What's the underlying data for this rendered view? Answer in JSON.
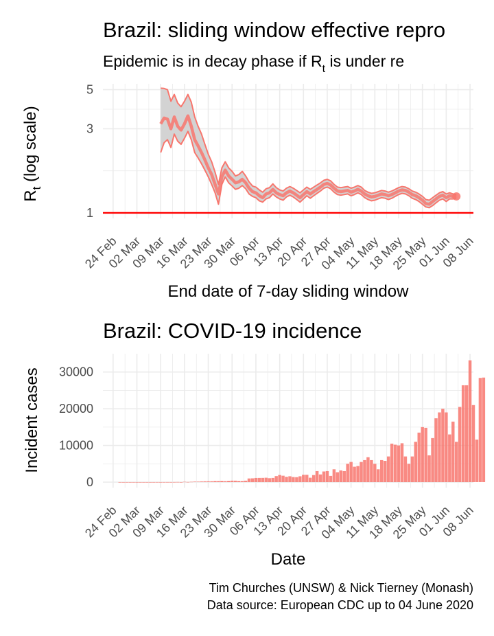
{
  "colors": {
    "series": "#f8766d",
    "threshold": "#ff0000",
    "ribbon": "#d3d3d3",
    "grid": "#ebebeb"
  },
  "chart_data": [
    {
      "type": "line",
      "title": "Brazil: sliding window effective repro",
      "subtitle_prefix": "Epidemic is in decay phase if R",
      "subtitle_sub": "t",
      "subtitle_suffix": "  is under re",
      "xlabel": "End date of 7-day sliding window",
      "ylabel_main": "R",
      "ylabel_sub": "t",
      "ylabel_suffix": " (log scale)",
      "yscale": "log",
      "ylim": [
        0.93,
        5.4
      ],
      "yticks": [
        {
          "value": 1,
          "label": "1"
        },
        {
          "value": 3,
          "label": "3"
        },
        {
          "value": 5,
          "label": "5"
        }
      ],
      "xlim": [
        "2020-02-21",
        "2020-06-09"
      ],
      "xticks": [
        {
          "date": "2020-02-24",
          "label": "24 Feb"
        },
        {
          "date": "2020-03-02",
          "label": "02 Mar"
        },
        {
          "date": "2020-03-09",
          "label": "09 Mar"
        },
        {
          "date": "2020-03-16",
          "label": "16 Mar"
        },
        {
          "date": "2020-03-23",
          "label": "23 Mar"
        },
        {
          "date": "2020-03-30",
          "label": "30 Mar"
        },
        {
          "date": "2020-04-06",
          "label": "06 Apr"
        },
        {
          "date": "2020-04-13",
          "label": "13 Apr"
        },
        {
          "date": "2020-04-20",
          "label": "20 Apr"
        },
        {
          "date": "2020-04-27",
          "label": "27 Apr"
        },
        {
          "date": "2020-05-04",
          "label": "04 May"
        },
        {
          "date": "2020-05-11",
          "label": "11 May"
        },
        {
          "date": "2020-05-18",
          "label": "18 May"
        },
        {
          "date": "2020-05-25",
          "label": "25 May"
        },
        {
          "date": "2020-06-01",
          "label": "01 Jun"
        },
        {
          "date": "2020-06-08",
          "label": "08 Jun"
        }
      ],
      "threshold": 1,
      "grid": true,
      "series": [
        {
          "points": [
            [
              "2020-03-09",
              3.2,
              2.2,
              5.1
            ],
            [
              "2020-03-10",
              3.45,
              2.5,
              5.08
            ],
            [
              "2020-03-11",
              3.4,
              2.6,
              5.0
            ],
            [
              "2020-03-12",
              3.0,
              2.35,
              4.3
            ],
            [
              "2020-03-13",
              3.5,
              2.8,
              4.7
            ],
            [
              "2020-03-14",
              3.1,
              2.55,
              4.2
            ],
            [
              "2020-03-15",
              2.95,
              2.45,
              4.0
            ],
            [
              "2020-03-16",
              3.2,
              2.65,
              4.3
            ],
            [
              "2020-03-17",
              3.55,
              2.9,
              4.7
            ],
            [
              "2020-03-18",
              3.1,
              2.6,
              4.25
            ],
            [
              "2020-03-19",
              2.6,
              2.2,
              3.5
            ],
            [
              "2020-03-20",
              2.4,
              2.05,
              3.1
            ],
            [
              "2020-03-21",
              2.2,
              1.9,
              2.8
            ],
            [
              "2020-03-22",
              2.0,
              1.75,
              2.45
            ],
            [
              "2020-03-23",
              1.8,
              1.6,
              2.15
            ],
            [
              "2020-03-24",
              1.65,
              1.45,
              1.95
            ],
            [
              "2020-03-25",
              1.45,
              1.3,
              1.7
            ],
            [
              "2020-03-26",
              1.28,
              1.12,
              1.45
            ],
            [
              "2020-03-27",
              1.6,
              1.45,
              1.8
            ],
            [
              "2020-03-28",
              1.75,
              1.6,
              1.95
            ],
            [
              "2020-03-29",
              1.62,
              1.48,
              1.8
            ],
            [
              "2020-03-30",
              1.55,
              1.42,
              1.72
            ],
            [
              "2020-03-31",
              1.48,
              1.36,
              1.62
            ],
            [
              "2020-04-01",
              1.5,
              1.38,
              1.65
            ],
            [
              "2020-04-02",
              1.55,
              1.43,
              1.72
            ],
            [
              "2020-04-03",
              1.48,
              1.37,
              1.62
            ],
            [
              "2020-04-04",
              1.38,
              1.28,
              1.5
            ],
            [
              "2020-04-05",
              1.32,
              1.24,
              1.42
            ],
            [
              "2020-04-06",
              1.3,
              1.22,
              1.4
            ],
            [
              "2020-04-07",
              1.25,
              1.17,
              1.35
            ],
            [
              "2020-04-08",
              1.22,
              1.15,
              1.31
            ],
            [
              "2020-04-09",
              1.28,
              1.2,
              1.37
            ],
            [
              "2020-04-10",
              1.3,
              1.22,
              1.39
            ],
            [
              "2020-04-11",
              1.36,
              1.28,
              1.46
            ],
            [
              "2020-04-12",
              1.3,
              1.23,
              1.39
            ],
            [
              "2020-04-13",
              1.27,
              1.2,
              1.35
            ],
            [
              "2020-04-14",
              1.25,
              1.18,
              1.33
            ],
            [
              "2020-04-15",
              1.3,
              1.23,
              1.38
            ],
            [
              "2020-04-16",
              1.33,
              1.26,
              1.41
            ],
            [
              "2020-04-17",
              1.3,
              1.23,
              1.38
            ],
            [
              "2020-04-18",
              1.26,
              1.19,
              1.34
            ],
            [
              "2020-04-19",
              1.22,
              1.15,
              1.3
            ],
            [
              "2020-04-20",
              1.27,
              1.2,
              1.35
            ],
            [
              "2020-04-21",
              1.32,
              1.25,
              1.4
            ],
            [
              "2020-04-22",
              1.28,
              1.21,
              1.36
            ],
            [
              "2020-04-23",
              1.32,
              1.25,
              1.4
            ],
            [
              "2020-04-24",
              1.36,
              1.29,
              1.44
            ],
            [
              "2020-04-25",
              1.4,
              1.33,
              1.48
            ],
            [
              "2020-04-26",
              1.45,
              1.38,
              1.53
            ],
            [
              "2020-04-27",
              1.47,
              1.4,
              1.55
            ],
            [
              "2020-04-28",
              1.44,
              1.37,
              1.52
            ],
            [
              "2020-04-29",
              1.38,
              1.31,
              1.45
            ],
            [
              "2020-04-30",
              1.33,
              1.27,
              1.4
            ],
            [
              "2020-05-01",
              1.32,
              1.26,
              1.39
            ],
            [
              "2020-05-02",
              1.33,
              1.27,
              1.4
            ],
            [
              "2020-05-03",
              1.34,
              1.28,
              1.41
            ],
            [
              "2020-05-04",
              1.31,
              1.25,
              1.38
            ],
            [
              "2020-05-05",
              1.33,
              1.27,
              1.4
            ],
            [
              "2020-05-06",
              1.36,
              1.3,
              1.43
            ],
            [
              "2020-05-07",
              1.33,
              1.27,
              1.4
            ],
            [
              "2020-05-08",
              1.28,
              1.22,
              1.34
            ],
            [
              "2020-05-09",
              1.25,
              1.19,
              1.31
            ],
            [
              "2020-05-10",
              1.23,
              1.17,
              1.29
            ],
            [
              "2020-05-11",
              1.24,
              1.18,
              1.3
            ],
            [
              "2020-05-12",
              1.26,
              1.2,
              1.32
            ],
            [
              "2020-05-13",
              1.28,
              1.22,
              1.34
            ],
            [
              "2020-05-14",
              1.27,
              1.21,
              1.33
            ],
            [
              "2020-05-15",
              1.25,
              1.19,
              1.31
            ],
            [
              "2020-05-16",
              1.27,
              1.21,
              1.33
            ],
            [
              "2020-05-17",
              1.3,
              1.24,
              1.36
            ],
            [
              "2020-05-18",
              1.33,
              1.27,
              1.39
            ],
            [
              "2020-05-19",
              1.35,
              1.29,
              1.41
            ],
            [
              "2020-05-20",
              1.34,
              1.28,
              1.4
            ],
            [
              "2020-05-21",
              1.31,
              1.25,
              1.37
            ],
            [
              "2020-05-22",
              1.27,
              1.21,
              1.33
            ],
            [
              "2020-05-23",
              1.25,
              1.19,
              1.31
            ],
            [
              "2020-05-24",
              1.22,
              1.16,
              1.28
            ],
            [
              "2020-05-25",
              1.18,
              1.12,
              1.24
            ],
            [
              "2020-05-26",
              1.13,
              1.08,
              1.19
            ],
            [
              "2020-05-27",
              1.12,
              1.07,
              1.18
            ],
            [
              "2020-05-28",
              1.16,
              1.1,
              1.22
            ],
            [
              "2020-05-29",
              1.2,
              1.14,
              1.26
            ],
            [
              "2020-05-30",
              1.24,
              1.18,
              1.3
            ],
            [
              "2020-05-31",
              1.26,
              1.2,
              1.32
            ],
            [
              "2020-06-01",
              1.22,
              1.16,
              1.28
            ],
            [
              "2020-06-02",
              1.25,
              1.2,
              1.3
            ],
            [
              "2020-06-03",
              1.24,
              1.2,
              1.28
            ],
            [
              "2020-06-04",
              1.24,
              1.21,
              1.27
            ]
          ]
        }
      ]
    },
    {
      "type": "bar",
      "title": "Brazil: COVID-19 incidence",
      "xlabel": "Date",
      "ylabel": "Incident cases",
      "ylim": [
        -1500,
        35000
      ],
      "yticks": [
        {
          "value": 0,
          "label": "0"
        },
        {
          "value": 10000,
          "label": "10000"
        },
        {
          "value": 20000,
          "label": "20000"
        },
        {
          "value": 30000,
          "label": "30000"
        }
      ],
      "xlim": [
        "2020-02-21",
        "2020-06-09"
      ],
      "grid": true,
      "start_date": "2020-02-26",
      "values": [
        1,
        0,
        0,
        0,
        1,
        0,
        0,
        0,
        0,
        0,
        1,
        5,
        2,
        5,
        6,
        4,
        13,
        29,
        0,
        87,
        35,
        84,
        150,
        141,
        200,
        232,
        241,
        255,
        330,
        320,
        360,
        294,
        369,
        405,
        400,
        340,
        320,
        400,
        1000,
        1030,
        1130,
        1140,
        1150,
        1200,
        1070,
        1140,
        1650,
        1950,
        1750,
        1450,
        1600,
        1390,
        1350,
        1600,
        2000,
        2000,
        1200,
        1930,
        3000,
        2100,
        2900,
        3000,
        1700,
        3500,
        2700,
        3200,
        3000,
        5000,
        5500,
        4200,
        4400,
        5500,
        6000,
        6800,
        6000,
        5000,
        3500,
        6000,
        5800,
        7000,
        10500,
        10200,
        10000,
        10600,
        7000,
        5000,
        7000,
        11000,
        13500,
        15000,
        14800,
        7300,
        12000,
        17400,
        19000,
        20000,
        19000,
        13000,
        16500,
        11000,
        20500,
        26400,
        26400,
        33200,
        21000,
        11600,
        28400,
        28500
      ]
    }
  ],
  "caption": {
    "line1": "Tim Churches (UNSW) & Nick Tierney (Monash)",
    "line2": "Data source: European CDC up to 04 June 2020"
  }
}
